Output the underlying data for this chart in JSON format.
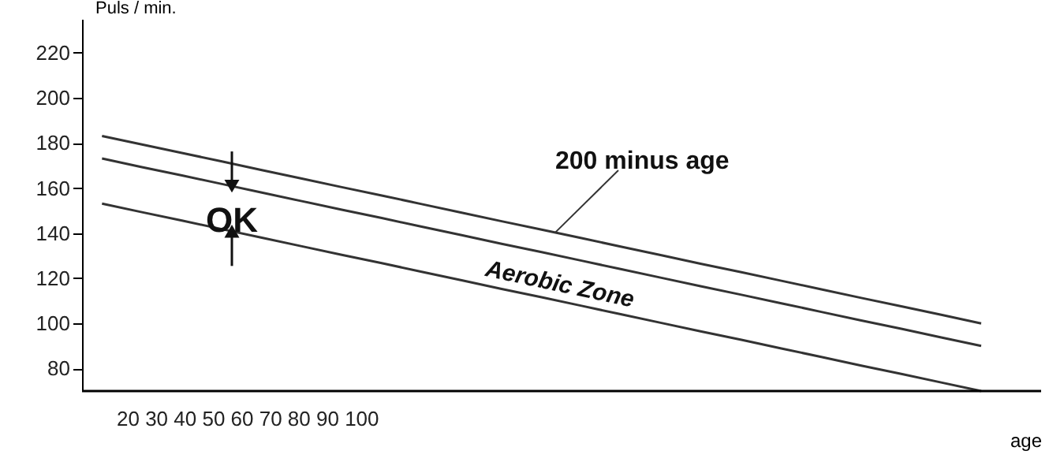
{
  "chart_data": {
    "type": "line",
    "xlabel": "age",
    "ylabel": "Puls /  min.",
    "categories": [
      null,
      null,
      null,
      null,
      null,
      null,
      null,
      null,
      null,
      null,
      null,
      null,
      null,
      null,
      null,
      null,
      null,
      null,
      null,
      null,
      null,
      null,
      null,
      null
    ],
    "series": [
      {
        "color": "#333333",
        "values": [
          183.1,
          179.3,
          175.6,
          171.8,
          168,
          164.2,
          160.4,
          156.7,
          152.9,
          149.1,
          145.3,
          141.6,
          137.8,
          134,
          130.2,
          126.4,
          122.7,
          118.9,
          115.1,
          111.3,
          107.6,
          103.8,
          100,
          null
        ]
      },
      {
        "color": "#333333",
        "values": [
          173.1,
          169.3,
          165.6,
          161.8,
          158,
          154.2,
          150.4,
          146.7,
          142.9,
          139.1,
          135.3,
          131.6,
          127.8,
          124,
          120.2,
          116.4,
          112.7,
          108.9,
          105.1,
          101.3,
          97.6,
          93.8,
          90,
          null
        ]
      },
      {
        "color": "#333333",
        "values": [
          153.1,
          149.3,
          145.6,
          141.8,
          138,
          134.2,
          130.4,
          126.7,
          122.9,
          119.1,
          115.3,
          111.6,
          107.8,
          104,
          100.2,
          96.4,
          92.7,
          88.9,
          85.1,
          81.3,
          77.6,
          73.8,
          70,
          null
        ]
      }
    ],
    "ylim": [
      70,
      235
    ],
    "yticks": [
      80,
      100,
      120,
      140,
      160,
      180,
      200,
      220
    ],
    "tick_labels": "y",
    "grid": false,
    "marker": "none",
    "line_style": "solid",
    "annotations": [
      "200 minus age",
      "OK",
      "Aerobic Zone",
      "20 30 40 50 60 70 80 90 100"
    ]
  }
}
